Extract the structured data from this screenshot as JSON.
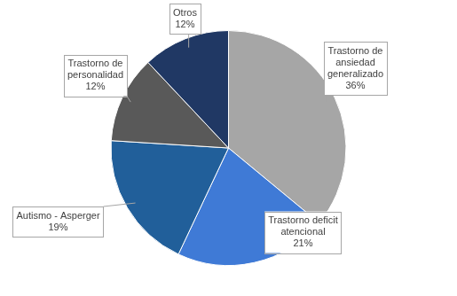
{
  "chart_data": {
    "type": "pie",
    "categories": [
      "Trastorno de ansiedad generalizado",
      "Trastorno deficit atencional",
      "Autismo - Asperger",
      "Trastorno de personalidad",
      "Otros"
    ],
    "values": [
      36,
      21,
      19,
      12,
      12
    ],
    "value_labels": [
      "36%",
      "21%",
      "19%",
      "12%",
      "12%"
    ],
    "colors": [
      "#a6a6a6",
      "#3f7ad6",
      "#215f9a",
      "#595959",
      "#203864"
    ],
    "data_labels": true
  }
}
